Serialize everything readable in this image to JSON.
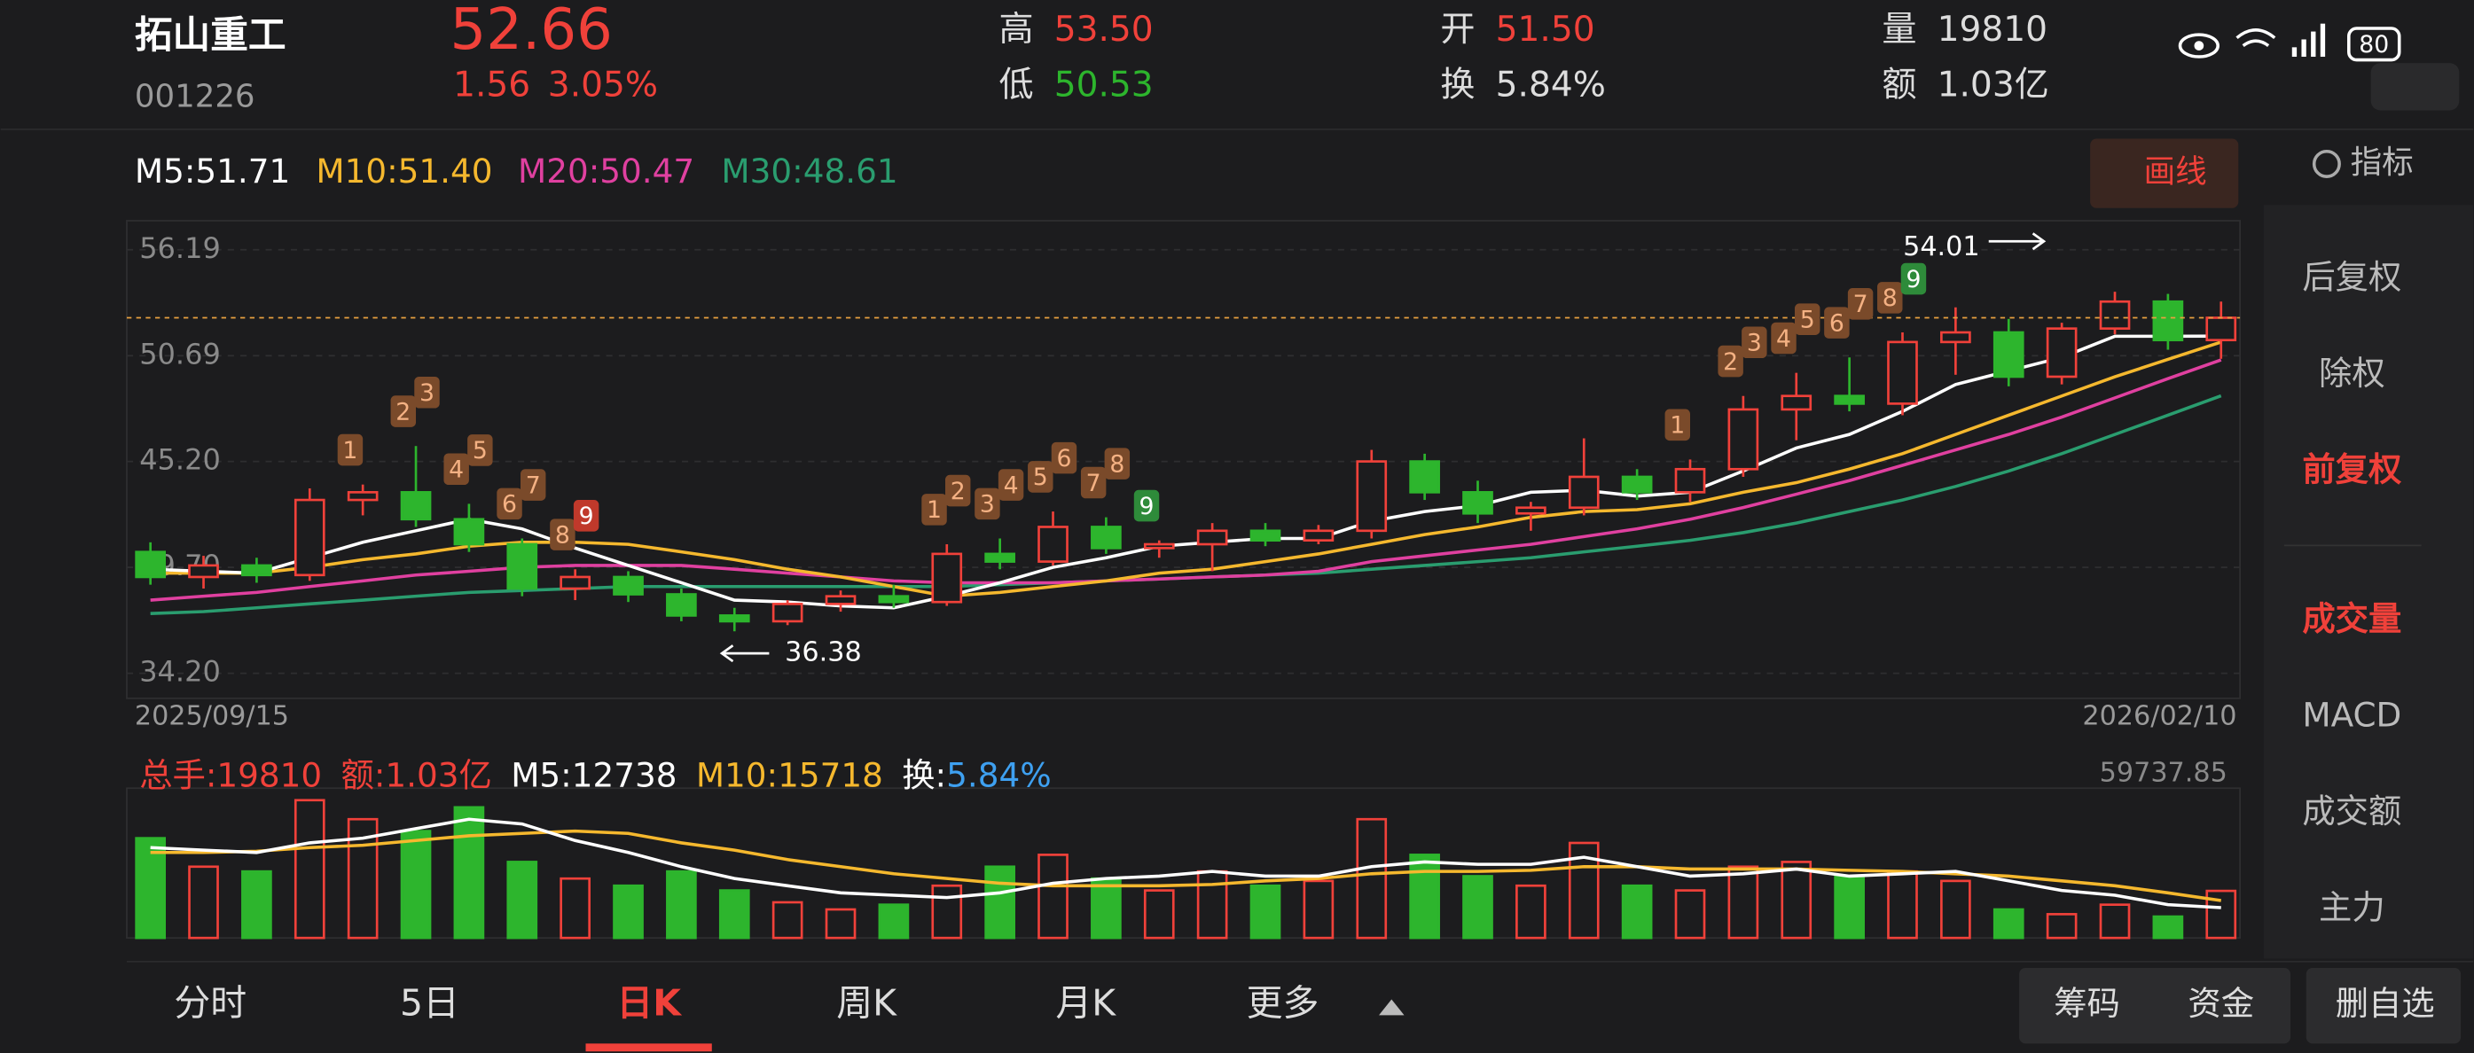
{
  "header": {
    "name": "拓山重工",
    "code": "001226",
    "price": "52.66",
    "change": "1.56",
    "change_pct": "3.05%",
    "high_label": "高",
    "high": "53.50",
    "low_label": "低",
    "low": "50.53",
    "open_label": "开",
    "open": "51.50",
    "turnover_label": "换",
    "turnover": "5.84%",
    "volume_label": "量",
    "volume": "19810",
    "amount_label": "额",
    "amount": "1.03亿",
    "battery": "80"
  },
  "draw_button": "画线",
  "indicator_button": "指标",
  "side_menu": [
    "后复权",
    "除权",
    "前复权",
    "成交量",
    "MACD",
    "成交额",
    "主力"
  ],
  "tabs": [
    "分时",
    "5日",
    "日K",
    "周K",
    "月K",
    "更多"
  ],
  "right_tabs": [
    "筹码",
    "资金",
    "删自选"
  ],
  "chart_data": [
    {
      "type": "candlestick",
      "up_color": "#f0413a",
      "down_color": "#2db52d",
      "date_start": "2025/09/15",
      "date_end": "2026/02/10",
      "ylim": [
        32.9,
        57.7
      ],
      "yticks": [
        56.19,
        50.69,
        {
          "value": 45.2,
          "label": "45.20"
        },
        {
          "value": 39.7,
          "label": "39.70"
        },
        {
          "value": 34.2,
          "label": "34.20"
        }
      ],
      "open": [
        40.5,
        39.2,
        39.8,
        39.3,
        43.2,
        43.6,
        42.2,
        40.9,
        38.6,
        39.2,
        38.3,
        37.2,
        36.9,
        37.8,
        38.2,
        37.9,
        40.4,
        40.0,
        41.8,
        40.7,
        40.9,
        41.6,
        41.1,
        41.6,
        45.2,
        43.6,
        42.5,
        42.8,
        44.4,
        43.6,
        44.8,
        47.9,
        48.6,
        48.2,
        51.4,
        51.9,
        49.6,
        52.1,
        53.5,
        51.5
      ],
      "high": [
        41,
        40.3,
        40.2,
        43.8,
        44.0,
        46.0,
        43.0,
        41.2,
        39.6,
        39.5,
        38.6,
        37.6,
        38.0,
        38.5,
        38.8,
        40.9,
        41.2,
        42.6,
        42.3,
        41.1,
        42.0,
        42.0,
        41.9,
        45.8,
        45.6,
        44.2,
        43.1,
        46.4,
        44.8,
        45.3,
        48.6,
        49.8,
        50.6,
        51.9,
        53.2,
        52.6,
        52.4,
        54.01,
        53.9,
        53.5
      ],
      "low": [
        38.8,
        38.6,
        38.9,
        39.0,
        42.4,
        41.8,
        40.5,
        38.2,
        38.0,
        37.9,
        36.9,
        36.38,
        36.7,
        37.4,
        37.6,
        37.7,
        39.6,
        39.8,
        40.4,
        40.2,
        39.5,
        40.8,
        40.9,
        41.2,
        43.2,
        42.0,
        41.6,
        42.4,
        43.2,
        43.1,
        44.4,
        46.3,
        47.8,
        47.6,
        49.7,
        49.1,
        49.2,
        51.8,
        51.0,
        50.53
      ],
      "close": [
        39.2,
        39.8,
        39.3,
        43.2,
        43.6,
        42.2,
        40.9,
        38.6,
        39.2,
        38.3,
        37.2,
        36.9,
        37.8,
        38.2,
        37.9,
        40.4,
        40.0,
        41.8,
        40.7,
        40.9,
        41.6,
        41.1,
        41.6,
        45.2,
        43.6,
        42.5,
        42.8,
        44.4,
        43.6,
        44.8,
        47.9,
        48.6,
        48.2,
        51.4,
        51.9,
        49.6,
        52.1,
        53.5,
        51.5,
        52.66
      ],
      "series": [
        {
          "label": "M5:51.71",
          "color": "#ffffff",
          "values": [
            39.6,
            39.5,
            39.4,
            40.2,
            41.0,
            41.6,
            42.2,
            41.7,
            40.7,
            39.8,
            38.9,
            38.0,
            37.9,
            37.7,
            37.6,
            38.2,
            38.9,
            39.7,
            40.2,
            40.8,
            41.0,
            41.2,
            41.2,
            42.1,
            42.6,
            42.9,
            43.6,
            43.7,
            43.4,
            43.6,
            44.7,
            45.9,
            46.6,
            47.8,
            49.2,
            49.9,
            50.6,
            51.7,
            51.7,
            51.71
          ]
        },
        {
          "label": "M10:51.40",
          "color": "#f5b82e",
          "values": [
            39.4,
            39.4,
            39.4,
            39.7,
            40.1,
            40.4,
            40.8,
            41.0,
            41.0,
            40.9,
            40.5,
            40.1,
            39.6,
            39.2,
            38.7,
            38.2,
            38.4,
            38.7,
            39.0,
            39.4,
            39.6,
            40.0,
            40.4,
            40.9,
            41.4,
            41.8,
            42.3,
            42.6,
            42.7,
            43.0,
            43.6,
            44.1,
            44.8,
            45.6,
            46.6,
            47.6,
            48.6,
            49.6,
            50.5,
            51.4
          ]
        },
        {
          "label": "M20:50.47",
          "color": "#e040a0",
          "values": [
            38.0,
            38.2,
            38.4,
            38.7,
            39.0,
            39.3,
            39.5,
            39.7,
            39.8,
            39.8,
            39.8,
            39.6,
            39.4,
            39.2,
            39.0,
            38.9,
            38.9,
            38.9,
            39.0,
            39.1,
            39.2,
            39.3,
            39.5,
            40.0,
            40.3,
            40.6,
            40.9,
            41.3,
            41.7,
            42.2,
            42.8,
            43.5,
            44.2,
            45.0,
            45.8,
            46.6,
            47.5,
            48.5,
            49.5,
            50.47
          ]
        },
        {
          "label": "M30:48.61",
          "color": "#2a9d6f",
          "values": [
            37.3,
            37.4,
            37.6,
            37.8,
            38.0,
            38.2,
            38.4,
            38.5,
            38.6,
            38.7,
            38.7,
            38.7,
            38.7,
            38.7,
            38.7,
            38.7,
            38.8,
            38.9,
            39.0,
            39.1,
            39.2,
            39.3,
            39.4,
            39.6,
            39.8,
            40.0,
            40.2,
            40.5,
            40.8,
            41.1,
            41.5,
            42.0,
            42.6,
            43.2,
            43.9,
            44.7,
            45.6,
            46.6,
            47.6,
            48.61
          ]
        }
      ],
      "signal_sequences": [
        {
          "final_color": "#c0392b",
          "marks": [
            {
              "index": 4,
              "label": 1
            },
            {
              "index": 5,
              "label": 2
            },
            {
              "index": 5,
              "label": 3
            },
            {
              "index": 6,
              "label": 4
            },
            {
              "index": 6,
              "label": 5
            },
            {
              "index": 7,
              "label": 6
            },
            {
              "index": 7,
              "label": 7
            },
            {
              "index": 8,
              "label": 8
            },
            {
              "index": 8,
              "label": 9
            }
          ]
        },
        {
          "final_color": "#2e8b3a",
          "marks": [
            {
              "index": 15,
              "label": 1
            },
            {
              "index": 15,
              "label": 2
            },
            {
              "index": 16,
              "label": 3
            },
            {
              "index": 16,
              "label": 4
            },
            {
              "index": 17,
              "label": 5
            },
            {
              "index": 17,
              "label": 6
            },
            {
              "index": 18,
              "label": 7
            },
            {
              "index": 18,
              "label": 8
            },
            {
              "index": 19,
              "label": 9
            }
          ]
        },
        {
          "final_color": "#2e8b3a",
          "marks": [
            {
              "index": 29,
              "label": 1
            },
            {
              "index": 30,
              "label": 2
            },
            {
              "index": 30,
              "label": 3
            },
            {
              "index": 31,
              "label": 4
            },
            {
              "index": 31,
              "label": 5
            },
            {
              "index": 32,
              "label": 6
            },
            {
              "index": 32,
              "label": 7
            },
            {
              "index": 33,
              "label": 8
            },
            {
              "index": 33,
              "label": 9
            }
          ]
        }
      ],
      "annotations": [
        {
          "label": "54.01",
          "index": 37,
          "side": "left"
        },
        {
          "label": "36.38",
          "index": 11,
          "side": "right"
        }
      ]
    },
    {
      "type": "bar",
      "header": [
        {
          "text": "总手:19810",
          "color": "#f0413a"
        },
        {
          "text": "额:1.03亿",
          "color": "#f0413a"
        },
        {
          "text": "M5:12738",
          "color": "#ffffff"
        },
        {
          "text": "M10:15718",
          "color": "#f5b82e"
        },
        {
          "text": "换:",
          "color": "#ffffff"
        },
        {
          "text": "5.84%",
          "color": "#3ea0f0"
        }
      ],
      "ylim": [
        0,
        59737.85
      ],
      "yticks": [
        59737.85
      ],
      "values": [
        42000,
        30000,
        28000,
        58000,
        50000,
        45000,
        55000,
        32000,
        25000,
        22000,
        28000,
        20000,
        15000,
        12000,
        14000,
        22000,
        30000,
        35000,
        25000,
        20000,
        28000,
        22000,
        24000,
        50000,
        35000,
        26000,
        22000,
        40000,
        22000,
        20000,
        30000,
        32000,
        26000,
        28000,
        24000,
        12000,
        10000,
        14000,
        9000,
        19810
      ],
      "series": [
        {
          "color": "#ffffff",
          "values": [
            38000,
            37000,
            36000,
            40000,
            42000,
            46000,
            50000,
            48000,
            41000,
            36000,
            30000,
            25000,
            22000,
            19000,
            18000,
            17000,
            19000,
            23000,
            25000,
            26000,
            28000,
            26000,
            26000,
            30000,
            32000,
            31000,
            31000,
            34000,
            30000,
            26000,
            27000,
            29000,
            26000,
            27000,
            28000,
            24000,
            20000,
            18000,
            14000,
            12738
          ]
        },
        {
          "color": "#f5b82e",
          "values": [
            36000,
            36000,
            36500,
            38000,
            39000,
            41000,
            43000,
            44000,
            45000,
            44000,
            40000,
            37000,
            33000,
            30000,
            27000,
            25000,
            23000,
            22000,
            22000,
            22000,
            22500,
            24000,
            25000,
            27000,
            28000,
            28000,
            28500,
            30000,
            30000,
            29000,
            29000,
            29000,
            28500,
            28000,
            27000,
            26000,
            24000,
            22000,
            19000,
            15718
          ]
        }
      ]
    }
  ]
}
